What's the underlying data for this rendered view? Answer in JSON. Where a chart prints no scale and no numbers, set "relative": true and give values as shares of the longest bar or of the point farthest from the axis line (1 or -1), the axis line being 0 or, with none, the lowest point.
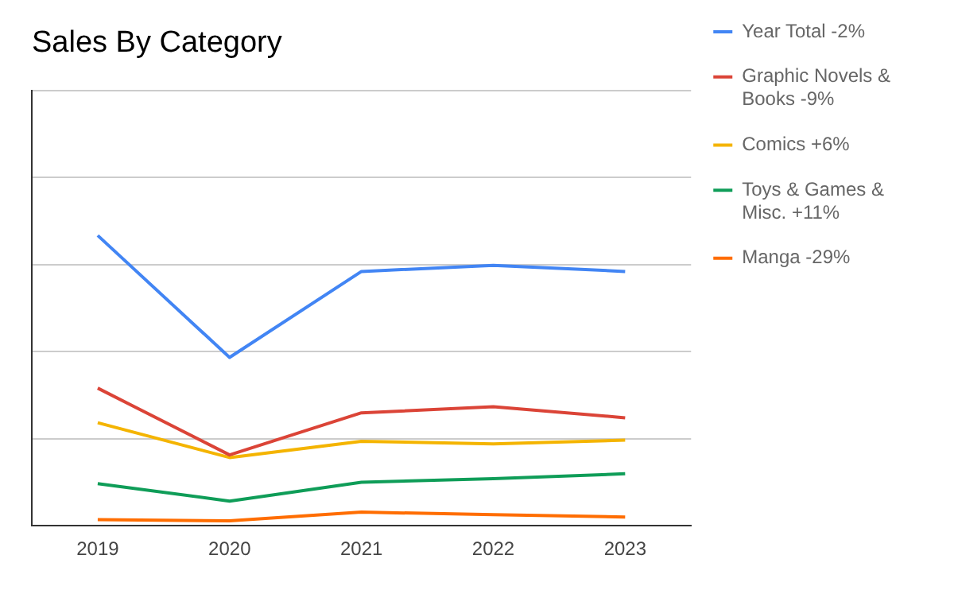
{
  "chart_data": {
    "type": "line",
    "title": "Sales By Category",
    "relative": true,
    "grid": "y",
    "legend": "right",
    "categories": [
      "2019",
      "2020",
      "2021",
      "2022",
      "2023"
    ],
    "series": [
      {
        "name": "Year Total -2%",
        "color": "#4285f4",
        "values": [
          1,
          0.58,
          0.876,
          0.897,
          0.876
        ]
      },
      {
        "name": "Graphic Novels & Books -9%",
        "color": "#db4437",
        "values": [
          0.474,
          0.244,
          0.389,
          0.41,
          0.372
        ]
      },
      {
        "name": "Comics +6%",
        "color": "#f4b400",
        "values": [
          0.355,
          0.235,
          0.291,
          0.282,
          0.295
        ]
      },
      {
        "name": "Toys & Games & Misc. +11%",
        "color": "#0f9d58",
        "values": [
          0.145,
          0.085,
          0.15,
          0.162,
          0.179
        ]
      },
      {
        "name": "Manga -29%",
        "color": "#ff6d01",
        "values": [
          0.021,
          0.017,
          0.047,
          0.038,
          0.03
        ]
      }
    ]
  }
}
